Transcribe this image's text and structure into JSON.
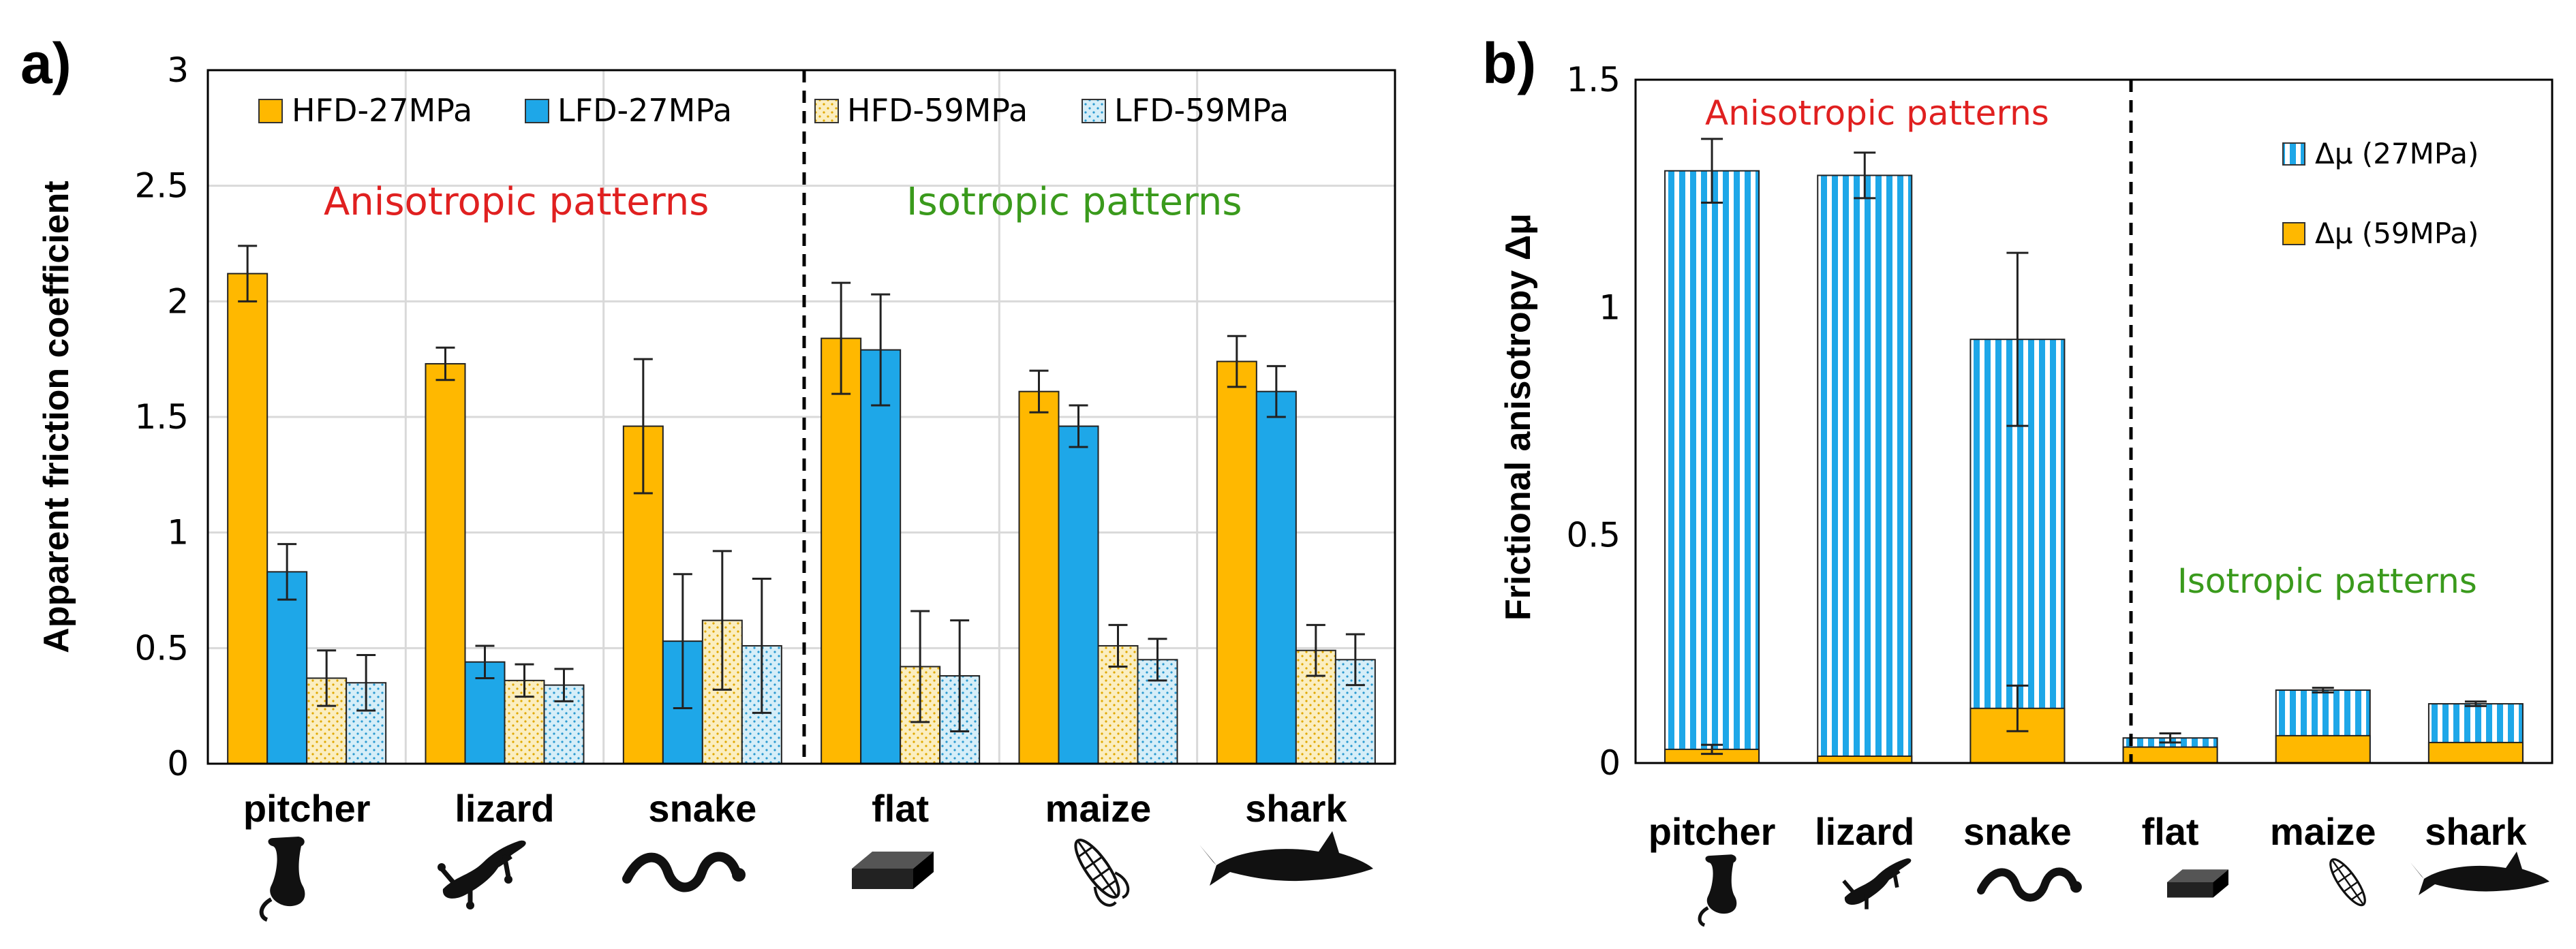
{
  "chart_data": [
    {
      "panel": "a)",
      "type": "bar",
      "title": "",
      "xlabel": "",
      "ylabel": "Apparent friction coefficient",
      "ylim": [
        0,
        3
      ],
      "yticks": [
        "0",
        "0.5",
        "1",
        "1.5",
        "2",
        "2.5",
        "3"
      ],
      "grid": true,
      "categories": [
        "pitcher",
        "lizard",
        "snake",
        "flat",
        "maize",
        "shark"
      ],
      "series": [
        {
          "name": "HFD-27MPa",
          "color": "#ffb800",
          "pattern": "solid",
          "values": [
            2.12,
            1.73,
            1.46,
            1.84,
            1.61,
            1.74
          ],
          "errors": [
            0.12,
            0.07,
            0.29,
            0.24,
            0.09,
            0.11
          ]
        },
        {
          "name": "LFD-27MPa",
          "color": "#1ea7e8",
          "pattern": "solid",
          "values": [
            0.83,
            0.44,
            0.53,
            1.79,
            1.46,
            1.61
          ],
          "errors": [
            0.12,
            0.07,
            0.29,
            0.24,
            0.09,
            0.11
          ]
        },
        {
          "name": "HFD-59MPa",
          "color": "#fbeec0",
          "pattern": "dots-yellow",
          "values": [
            0.37,
            0.36,
            0.62,
            0.42,
            0.51,
            0.49
          ],
          "errors": [
            0.12,
            0.07,
            0.3,
            0.24,
            0.09,
            0.11
          ]
        },
        {
          "name": "LFD-59MPa",
          "color": "#d6eef8",
          "pattern": "dots-blue",
          "values": [
            0.35,
            0.34,
            0.51,
            0.38,
            0.45,
            0.45
          ],
          "errors": [
            0.12,
            0.07,
            0.29,
            0.24,
            0.09,
            0.11
          ]
        }
      ],
      "divider_after_category": 2,
      "annotations": [
        {
          "text": "Anisotropic patterns",
          "color": "#e02020"
        },
        {
          "text": "Isotropic patterns",
          "color": "#3a9a1c"
        }
      ]
    },
    {
      "panel": "b)",
      "type": "bar",
      "title": "",
      "xlabel": "",
      "ylabel": "Frictional anisotropy Δμ",
      "ylim": [
        0,
        1.5
      ],
      "yticks": [
        "0",
        "0.5",
        "1",
        "1.5"
      ],
      "grid": false,
      "categories": [
        "pitcher",
        "lizard",
        "snake",
        "flat",
        "maize",
        "shark"
      ],
      "series": [
        {
          "name": "Δμ (27MPa)",
          "color": "#1ea7e8",
          "pattern": "stripes",
          "values": [
            1.3,
            1.29,
            0.93,
            0.055,
            0.16,
            0.13
          ],
          "errors": [
            0.07,
            0.05,
            0.19,
            0.01,
            0.005,
            0.005
          ]
        },
        {
          "name": "Δμ (59MPa)",
          "color": "#ffb800",
          "pattern": "solid",
          "values": [
            0.03,
            0.015,
            0.12,
            0.035,
            0.06,
            0.045
          ],
          "errors": [
            0.01,
            0.0,
            0.05,
            0.0,
            0.0,
            0.0
          ]
        }
      ],
      "divider_after_category": 2,
      "annotations": [
        {
          "text": "Anisotropic patterns",
          "color": "#e02020"
        },
        {
          "text": "Isotropic patterns",
          "color": "#3a9a1c"
        }
      ]
    }
  ],
  "icons": [
    "pitcher-plant-icon",
    "lizard-icon",
    "snake-icon",
    "flat-block-icon",
    "maize-icon",
    "shark-icon"
  ]
}
